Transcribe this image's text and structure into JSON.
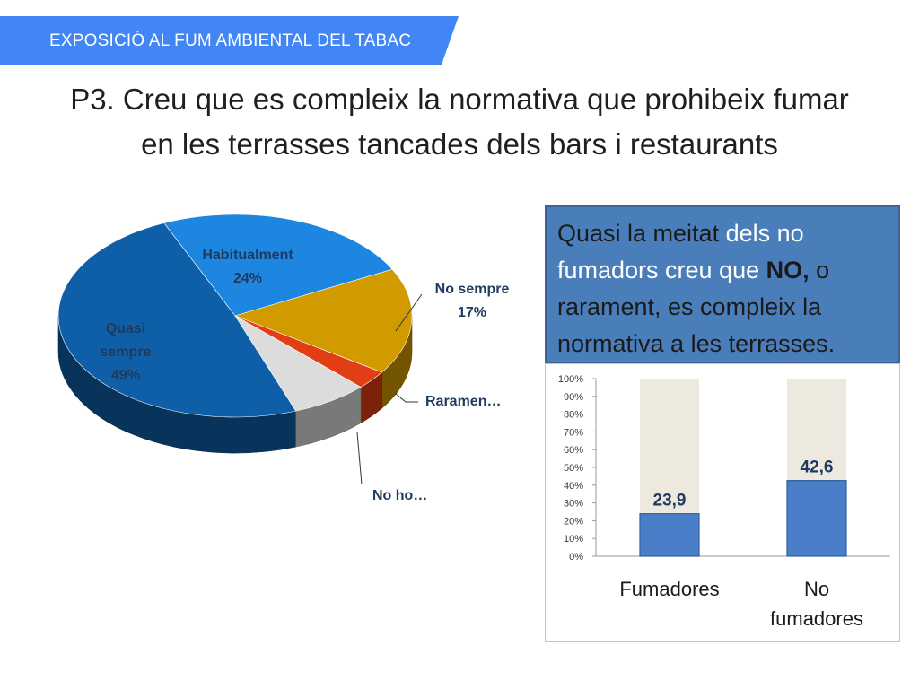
{
  "banner": {
    "text": "EXPOSICIÓ AL FUM AMBIENTAL DEL TABAC"
  },
  "title": {
    "line1": "P3. Creu que es compleix la normativa que prohibeix fumar",
    "line2": "en les terrasses tancades dels bars i restaurants"
  },
  "callout": {
    "p1": "Quasi la meitat",
    "p2": " dels no fumadors creu que ",
    "p3": "NO,",
    "p4": " o rarament, es compleix la normativa a les terrasses."
  },
  "colors": {
    "banner": "#4285f4",
    "callout": "#4a7ebb"
  },
  "chart_data": [
    {
      "type": "pie",
      "slices": [
        {
          "label": "Quasi sempre",
          "value": 49,
          "pct_label": "49%",
          "color": "#0e5fa8"
        },
        {
          "label": "Habitualment",
          "value": 24,
          "pct_label": "24%",
          "color": "#1c86e0"
        },
        {
          "label": "No sempre",
          "value": 17,
          "pct_label": "17%",
          "color": "#d19b00"
        },
        {
          "label": "Raramen…",
          "value": 3,
          "pct_label": "",
          "color": "#e23e16"
        },
        {
          "label": "No ho…",
          "value": 7,
          "pct_label": "",
          "color": "#dcdcdc"
        }
      ]
    },
    {
      "type": "bar",
      "stacked_to_100": true,
      "categories": [
        "Fumadores",
        "No fumadores"
      ],
      "values": [
        23.9,
        42.6
      ],
      "value_labels": [
        "23,9",
        "42,6"
      ],
      "ylim": [
        0,
        100
      ],
      "yticks": [
        "0%",
        "10%",
        "20%",
        "30%",
        "40%",
        "50%",
        "60%",
        "70%",
        "80%",
        "90%",
        "100%"
      ],
      "bar_color": "#4a7ec8",
      "remainder_color": "#ede9df"
    }
  ]
}
